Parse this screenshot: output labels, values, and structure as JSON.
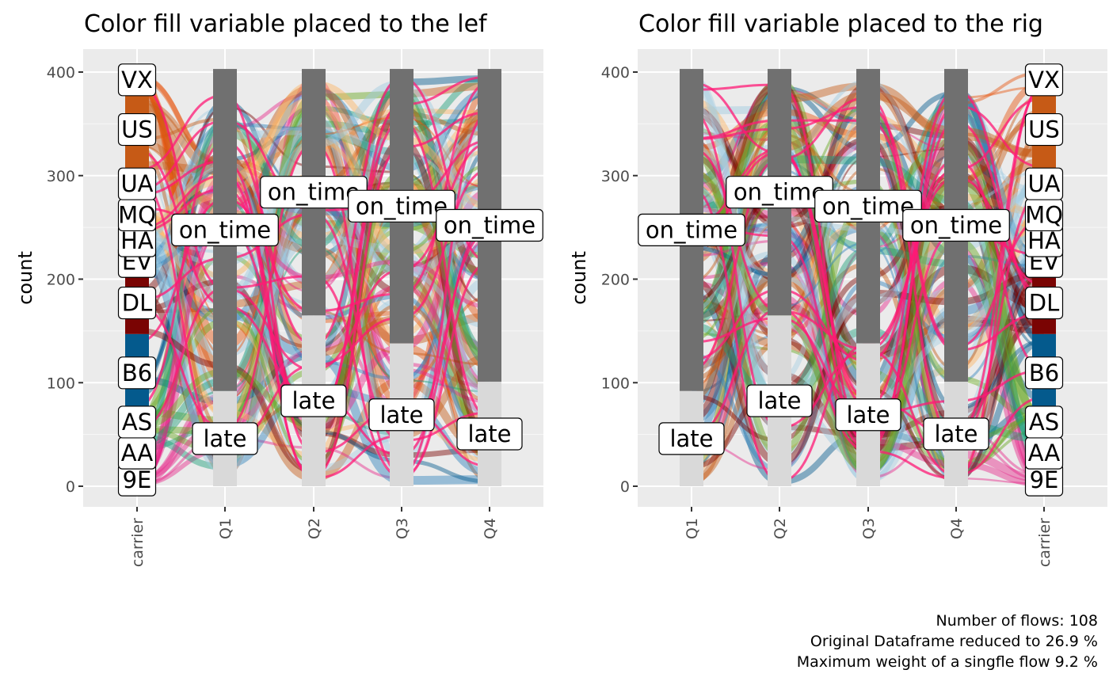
{
  "chart_data": [
    {
      "type": "alluvial",
      "title": "Color fill variable placed to the lef",
      "ylabel": "count",
      "ylim": [
        0,
        400
      ],
      "yticks": [
        0,
        100,
        200,
        300,
        400
      ],
      "xticks": [
        "carrier",
        "Q1",
        "Q2",
        "Q3",
        "Q4"
      ],
      "grid": true,
      "carrier_stratum": [
        {
          "name": "9E",
          "value": 12,
          "color": "#e7298a"
        },
        {
          "name": "AA",
          "value": 40,
          "color": "#1b9e77"
        },
        {
          "name": "AS",
          "value": 20,
          "color": "#66a61e"
        },
        {
          "name": "B6",
          "value": 75,
          "color": "#045a8d"
        },
        {
          "name": "DL",
          "value": 60,
          "color": "#7a0403"
        },
        {
          "name": "EV",
          "value": 20,
          "color": "#3182bd"
        },
        {
          "name": "HA",
          "value": 20,
          "color": "#9ecae1"
        },
        {
          "name": "MQ",
          "value": 30,
          "color": "#fdb462"
        },
        {
          "name": "UA",
          "value": 30,
          "color": "#a6cee3"
        },
        {
          "name": "US",
          "value": 75,
          "color": "#c65a16"
        },
        {
          "name": "VX",
          "value": 21,
          "color": "#e6550d"
        }
      ],
      "quarter_strata": [
        {
          "axis": "Q1",
          "late": 92,
          "on_time": 311
        },
        {
          "axis": "Q2",
          "late": 165,
          "on_time": 238
        },
        {
          "axis": "Q3",
          "late": 138,
          "on_time": 265
        },
        {
          "axis": "Q4",
          "late": 101,
          "on_time": 302
        }
      ],
      "stratum_labels": {
        "late": "late",
        "on_time": "on_time"
      }
    },
    {
      "type": "alluvial",
      "title": "Color fill variable placed to the rig",
      "ylabel": "count",
      "ylim": [
        0,
        400
      ],
      "yticks": [
        0,
        100,
        200,
        300,
        400
      ],
      "xticks": [
        "Q1",
        "Q2",
        "Q3",
        "Q4",
        "carrier"
      ],
      "grid": true,
      "carrier_stratum": [
        {
          "name": "9E",
          "value": 12,
          "color": "#e7298a"
        },
        {
          "name": "AA",
          "value": 40,
          "color": "#1b9e77"
        },
        {
          "name": "AS",
          "value": 20,
          "color": "#66a61e"
        },
        {
          "name": "B6",
          "value": 75,
          "color": "#045a8d"
        },
        {
          "name": "DL",
          "value": 60,
          "color": "#7a0403"
        },
        {
          "name": "EV",
          "value": 20,
          "color": "#3182bd"
        },
        {
          "name": "HA",
          "value": 20,
          "color": "#9ecae1"
        },
        {
          "name": "MQ",
          "value": 30,
          "color": "#fdb462"
        },
        {
          "name": "UA",
          "value": 30,
          "color": "#a6cee3"
        },
        {
          "name": "US",
          "value": 75,
          "color": "#c65a16"
        },
        {
          "name": "VX",
          "value": 21,
          "color": "#e6550d"
        }
      ],
      "quarter_strata": [
        {
          "axis": "Q1",
          "late": 92,
          "on_time": 311
        },
        {
          "axis": "Q2",
          "late": 165,
          "on_time": 238
        },
        {
          "axis": "Q3",
          "late": 138,
          "on_time": 265
        },
        {
          "axis": "Q4",
          "late": 101,
          "on_time": 302
        }
      ],
      "stratum_labels": {
        "late": "late",
        "on_time": "on_time"
      }
    }
  ],
  "caption": {
    "line1": "Number of flows: 108",
    "line2": "Original Dataframe reduced to 26.9 %",
    "line3": "Maximum weight of a singfle flow 9.2 %"
  },
  "colors": {
    "panel_bg": "#ebebeb",
    "grid": "#ffffff",
    "on_time_stratum": "#707070",
    "late_stratum": "#d9d9d9",
    "flow_palette": [
      "#1b9e77",
      "#c65a16",
      "#7a0403",
      "#045a8d",
      "#3182bd",
      "#e7298a",
      "#9ecae1",
      "#66a61e",
      "#fdb462",
      "#a6cee3",
      "#e6550d"
    ]
  }
}
